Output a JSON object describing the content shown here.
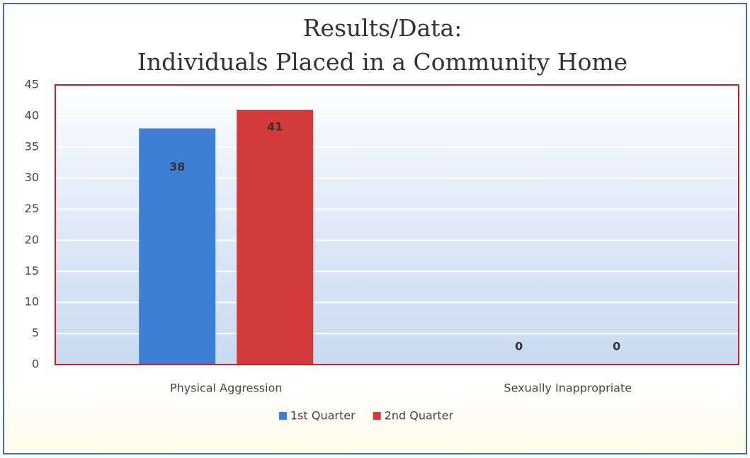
{
  "chart_data": {
    "type": "bar",
    "title": [
      "Results/Data:",
      "Individuals Placed in a Community Home"
    ],
    "categories": [
      "Physical Aggression",
      "Sexually Inappropriate"
    ],
    "series": [
      {
        "name": "1st Quarter",
        "color": "#3c7fd4",
        "values": [
          38,
          0
        ]
      },
      {
        "name": "2nd Quarter",
        "color": "#d33b3b",
        "values": [
          41,
          0
        ]
      }
    ],
    "ylim": [
      0,
      45
    ],
    "yticks": [
      0,
      5,
      10,
      15,
      20,
      25,
      30,
      35,
      40,
      45
    ],
    "grid": true,
    "legend": "bottom"
  }
}
